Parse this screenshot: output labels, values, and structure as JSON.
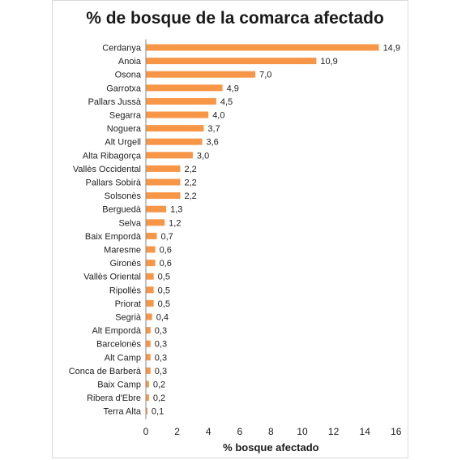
{
  "chart_data": {
    "type": "bar",
    "orientation": "horizontal",
    "title": "% de bosque de la comarca afectado",
    "xlabel": "% bosque afectado",
    "ylabel": "",
    "xlim": [
      0,
      16
    ],
    "xticks": [
      "0",
      "2",
      "4",
      "6",
      "8",
      "10",
      "12",
      "14",
      "16"
    ],
    "grid": false,
    "bar_color": "#F79646",
    "categories": [
      "Cerdanya",
      "Anoia",
      "Osona",
      "Garrotxa",
      "Pallars Jussà",
      "Segarra",
      "Noguera",
      "Alt Urgell",
      "Alta Ribagorça",
      "Vallès Occidental",
      "Pallars Sobirà",
      "Solsonès",
      "Berguedà",
      "Selva",
      "Baix Empordà",
      "Maresme",
      "Gironès",
      "Vallès Oriental",
      "Ripollès",
      "Priorat",
      "Segrià",
      "Alt Empordà",
      "Barcelonès",
      "Alt Camp",
      "Conca de Barberà",
      "Baix Camp",
      "Ribera d'Ebre",
      "Terra Alta"
    ],
    "values": [
      14.9,
      10.9,
      7.0,
      4.9,
      4.5,
      4.0,
      3.7,
      3.6,
      3.0,
      2.2,
      2.2,
      2.2,
      1.3,
      1.2,
      0.7,
      0.6,
      0.6,
      0.5,
      0.5,
      0.5,
      0.4,
      0.3,
      0.3,
      0.3,
      0.3,
      0.2,
      0.2,
      0.1
    ],
    "value_labels": [
      "14,9",
      "10,9",
      "7,0",
      "4,9",
      "4,5",
      "4,0",
      "3,7",
      "3,6",
      "3,0",
      "2,2",
      "2,2",
      "2,2",
      "1,3",
      "1,2",
      "0,7",
      "0,6",
      "0,6",
      "0,5",
      "0,5",
      "0,5",
      "0,4",
      "0,3",
      "0,3",
      "0,3",
      "0,3",
      "0,2",
      "0,2",
      "0,1"
    ]
  }
}
